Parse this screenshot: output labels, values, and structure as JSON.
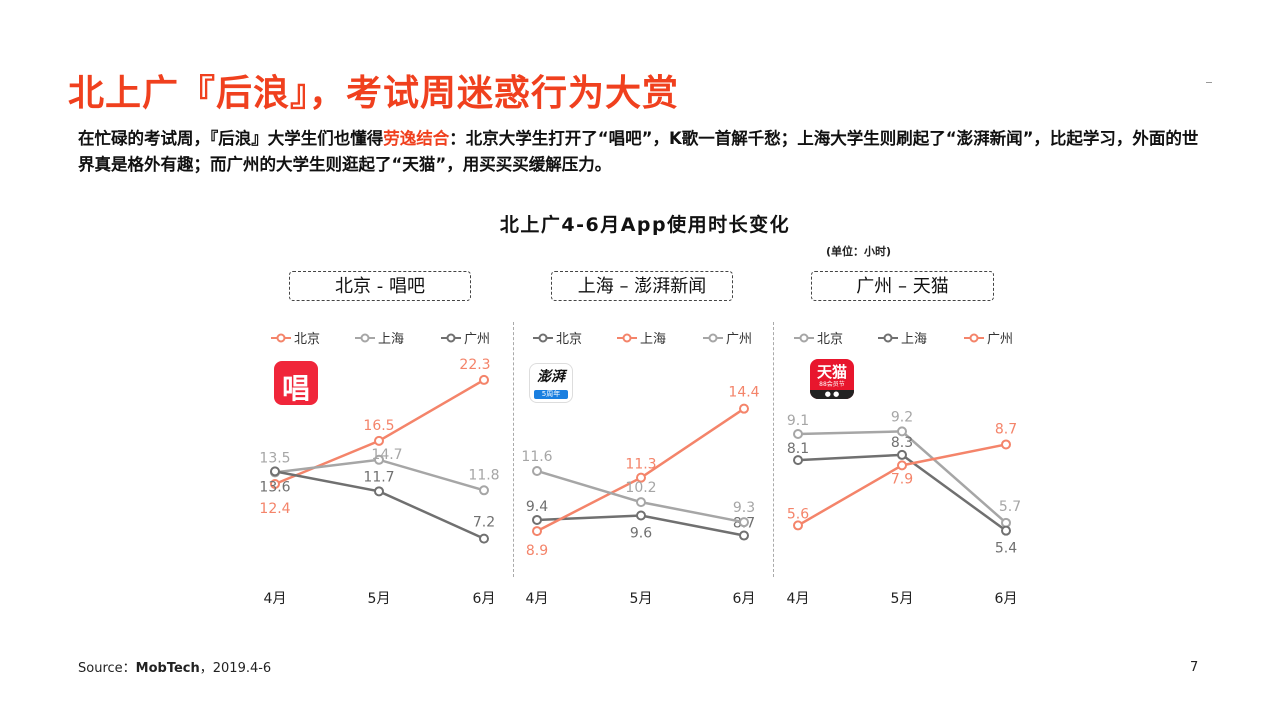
{
  "slide": {
    "title": "北上广『后浪』，考试周迷惑行为大赏",
    "desc_before": "在忙碌的考试周，『后浪』大学生们也懂得",
    "desc_highlight": "劳逸结合",
    "desc_after": "：北京大学生打开了“唱吧”，K歌一首解千愁；上海大学生则刷起了“澎湃新闻”，比起学习，外面的世界真是格外有趣；而广州的大学生则逛起了“天猫”，用买买买缓解压力。",
    "source_label": "Source：",
    "source_name": "MobTech",
    "source_date": "，2019.4-6",
    "page_number": "7",
    "app_icons": {
      "changba": "唱",
      "pengpai": "澎湃",
      "pengpai_band": "5周年",
      "tmall": "天猫",
      "tmall_sub": "88会员节",
      "tmall_bar": "● ●"
    }
  },
  "colors": {
    "highlight": "#f0401e",
    "light_gray": "#a6a6a6",
    "dark_gray": "#707070"
  },
  "chart_data": {
    "type": "line",
    "title": "北上广4-6月App使用时长变化",
    "unit": "(单位：小时)",
    "panels": [
      {
        "label": "北京 - 唱吧",
        "categories": [
          "4月",
          "5月",
          "6月"
        ],
        "series": [
          {
            "name": "北京",
            "values": [
              12.4,
              16.5,
              22.3
            ],
            "color": "#f4846a"
          },
          {
            "name": "上海",
            "values": [
              13.5,
              14.7,
              11.8
            ],
            "color": "#a6a6a6"
          },
          {
            "name": "广州",
            "values": [
              13.6,
              11.7,
              7.2
            ],
            "color": "#707070"
          }
        ]
      },
      {
        "label": "上海 – 澎湃新闻",
        "categories": [
          "4月",
          "5月",
          "6月"
        ],
        "series": [
          {
            "name": "北京",
            "values": [
              9.4,
              9.6,
              8.7
            ],
            "color": "#707070"
          },
          {
            "name": "上海",
            "values": [
              8.9,
              11.3,
              14.4
            ],
            "color": "#f4846a"
          },
          {
            "name": "广州",
            "values": [
              11.6,
              10.2,
              9.3
            ],
            "color": "#a6a6a6"
          }
        ]
      },
      {
        "label": "广州 – 天猫",
        "categories": [
          "4月",
          "5月",
          "6月"
        ],
        "series": [
          {
            "name": "北京",
            "values": [
              9.1,
              9.2,
              5.7
            ],
            "color": "#a6a6a6"
          },
          {
            "name": "上海",
            "values": [
              8.1,
              8.3,
              5.4
            ],
            "color": "#707070"
          },
          {
            "name": "广州",
            "values": [
              5.6,
              7.9,
              8.7
            ],
            "color": "#f4846a"
          }
        ]
      }
    ]
  }
}
